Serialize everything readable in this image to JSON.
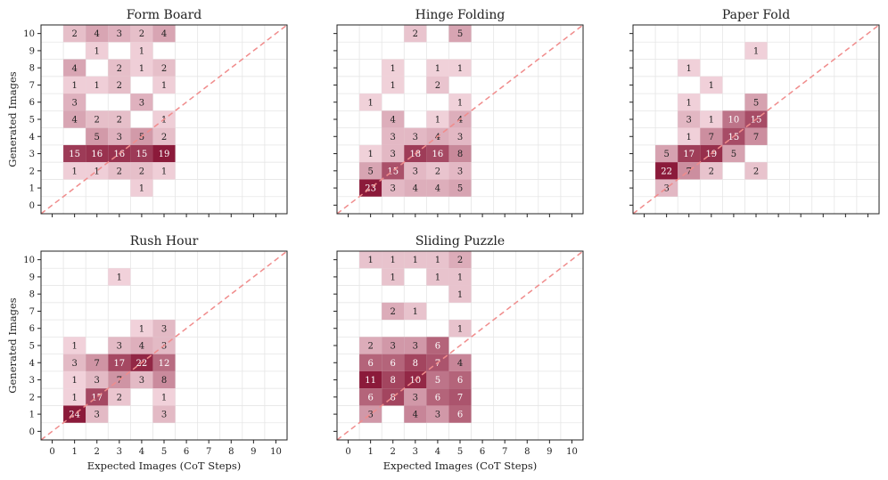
{
  "figure": {
    "xlabel": "Expected Images (CoT Steps)",
    "ylabel": "Generated Images"
  },
  "colors": {
    "diagonal": "#f08c8c",
    "cell_light": "#fbe4ea",
    "cell_dark": "#8b1a3a",
    "grid": "#e6e6e6",
    "axis": "#222222"
  },
  "chart_data": [
    {
      "type": "heatmap",
      "title": "Form Board",
      "xlabel": "",
      "ylabel": "Generated Images",
      "x_ticks": [
        "0",
        "1",
        "2",
        "3",
        "4",
        "5",
        "6",
        "7",
        "8",
        "9",
        "10"
      ],
      "y_ticks": [
        "0",
        "1",
        "2",
        "3",
        "4",
        "5",
        "6",
        "7",
        "8",
        "9",
        "10"
      ],
      "xlim": [
        -0.5,
        10.5
      ],
      "ylim": [
        -0.5,
        10.5
      ],
      "diagonal_reference": true,
      "cells": [
        {
          "x": 1,
          "y": 10,
          "v": 2
        },
        {
          "x": 2,
          "y": 10,
          "v": 4
        },
        {
          "x": 3,
          "y": 10,
          "v": 3
        },
        {
          "x": 4,
          "y": 10,
          "v": 2
        },
        {
          "x": 5,
          "y": 10,
          "v": 4
        },
        {
          "x": 2,
          "y": 9,
          "v": 1
        },
        {
          "x": 4,
          "y": 9,
          "v": 1
        },
        {
          "x": 1,
          "y": 8,
          "v": 4
        },
        {
          "x": 3,
          "y": 8,
          "v": 2
        },
        {
          "x": 4,
          "y": 8,
          "v": 1
        },
        {
          "x": 5,
          "y": 8,
          "v": 2
        },
        {
          "x": 1,
          "y": 7,
          "v": 1
        },
        {
          "x": 2,
          "y": 7,
          "v": 1
        },
        {
          "x": 3,
          "y": 7,
          "v": 2
        },
        {
          "x": 5,
          "y": 7,
          "v": 1
        },
        {
          "x": 1,
          "y": 6,
          "v": 3
        },
        {
          "x": 4,
          "y": 6,
          "v": 3
        },
        {
          "x": 1,
          "y": 5,
          "v": 4
        },
        {
          "x": 2,
          "y": 5,
          "v": 2
        },
        {
          "x": 3,
          "y": 5,
          "v": 2
        },
        {
          "x": 5,
          "y": 5,
          "v": 1
        },
        {
          "x": 2,
          "y": 4,
          "v": 5
        },
        {
          "x": 3,
          "y": 4,
          "v": 3
        },
        {
          "x": 4,
          "y": 4,
          "v": 5
        },
        {
          "x": 5,
          "y": 4,
          "v": 2
        },
        {
          "x": 1,
          "y": 3,
          "v": 15
        },
        {
          "x": 2,
          "y": 3,
          "v": 16
        },
        {
          "x": 3,
          "y": 3,
          "v": 16
        },
        {
          "x": 4,
          "y": 3,
          "v": 15
        },
        {
          "x": 5,
          "y": 3,
          "v": 19
        },
        {
          "x": 1,
          "y": 2,
          "v": 1
        },
        {
          "x": 2,
          "y": 2,
          "v": 1
        },
        {
          "x": 3,
          "y": 2,
          "v": 2
        },
        {
          "x": 4,
          "y": 2,
          "v": 2
        },
        {
          "x": 5,
          "y": 2,
          "v": 1
        },
        {
          "x": 4,
          "y": 1,
          "v": 1
        }
      ]
    },
    {
      "type": "heatmap",
      "title": "Hinge Folding",
      "xlabel": "",
      "ylabel": "",
      "x_ticks": [
        "0",
        "1",
        "2",
        "3",
        "4",
        "5",
        "6",
        "7",
        "8",
        "9",
        "10"
      ],
      "y_ticks": [],
      "xlim": [
        -0.5,
        10.5
      ],
      "ylim": [
        -0.5,
        10.5
      ],
      "diagonal_reference": true,
      "cells": [
        {
          "x": 3,
          "y": 10,
          "v": 2
        },
        {
          "x": 5,
          "y": 10,
          "v": 5
        },
        {
          "x": 2,
          "y": 8,
          "v": 1
        },
        {
          "x": 4,
          "y": 8,
          "v": 1
        },
        {
          "x": 5,
          "y": 8,
          "v": 1
        },
        {
          "x": 2,
          "y": 7,
          "v": 1
        },
        {
          "x": 4,
          "y": 7,
          "v": 2
        },
        {
          "x": 1,
          "y": 6,
          "v": 1
        },
        {
          "x": 5,
          "y": 6,
          "v": 1
        },
        {
          "x": 2,
          "y": 5,
          "v": 4
        },
        {
          "x": 4,
          "y": 5,
          "v": 1
        },
        {
          "x": 5,
          "y": 5,
          "v": 4
        },
        {
          "x": 2,
          "y": 4,
          "v": 3
        },
        {
          "x": 3,
          "y": 4,
          "v": 3
        },
        {
          "x": 4,
          "y": 4,
          "v": 4
        },
        {
          "x": 5,
          "y": 4,
          "v": 3
        },
        {
          "x": 1,
          "y": 3,
          "v": 1
        },
        {
          "x": 2,
          "y": 3,
          "v": 3
        },
        {
          "x": 3,
          "y": 3,
          "v": 18
        },
        {
          "x": 4,
          "y": 3,
          "v": 16
        },
        {
          "x": 5,
          "y": 3,
          "v": 8
        },
        {
          "x": 1,
          "y": 2,
          "v": 5
        },
        {
          "x": 2,
          "y": 2,
          "v": 15
        },
        {
          "x": 3,
          "y": 2,
          "v": 3
        },
        {
          "x": 4,
          "y": 2,
          "v": 2
        },
        {
          "x": 5,
          "y": 2,
          "v": 3
        },
        {
          "x": 1,
          "y": 1,
          "v": 23
        },
        {
          "x": 2,
          "y": 1,
          "v": 3
        },
        {
          "x": 3,
          "y": 1,
          "v": 4
        },
        {
          "x": 4,
          "y": 1,
          "v": 4
        },
        {
          "x": 5,
          "y": 1,
          "v": 5
        }
      ]
    },
    {
      "type": "heatmap",
      "title": "Paper Fold",
      "xlabel": "",
      "ylabel": "",
      "x_ticks": [
        "0",
        "1",
        "2",
        "3",
        "4",
        "5",
        "6",
        "7",
        "8",
        "9",
        "10"
      ],
      "y_ticks": [],
      "xlim": [
        -0.5,
        10.5
      ],
      "ylim": [
        -0.5,
        10.5
      ],
      "diagonal_reference": true,
      "cells": [
        {
          "x": 5,
          "y": 9,
          "v": 1
        },
        {
          "x": 2,
          "y": 8,
          "v": 1
        },
        {
          "x": 3,
          "y": 7,
          "v": 1
        },
        {
          "x": 2,
          "y": 6,
          "v": 1
        },
        {
          "x": 5,
          "y": 6,
          "v": 5
        },
        {
          "x": 2,
          "y": 5,
          "v": 3
        },
        {
          "x": 3,
          "y": 5,
          "v": 1
        },
        {
          "x": 4,
          "y": 5,
          "v": 10
        },
        {
          "x": 5,
          "y": 5,
          "v": 15
        },
        {
          "x": 2,
          "y": 4,
          "v": 1
        },
        {
          "x": 3,
          "y": 4,
          "v": 7
        },
        {
          "x": 4,
          "y": 4,
          "v": 15
        },
        {
          "x": 5,
          "y": 4,
          "v": 7
        },
        {
          "x": 1,
          "y": 3,
          "v": 5
        },
        {
          "x": 2,
          "y": 3,
          "v": 17
        },
        {
          "x": 3,
          "y": 3,
          "v": 19
        },
        {
          "x": 4,
          "y": 3,
          "v": 5
        },
        {
          "x": 1,
          "y": 2,
          "v": 22
        },
        {
          "x": 2,
          "y": 2,
          "v": 7
        },
        {
          "x": 3,
          "y": 2,
          "v": 2
        },
        {
          "x": 5,
          "y": 2,
          "v": 2
        },
        {
          "x": 1,
          "y": 1,
          "v": 3
        }
      ]
    },
    {
      "type": "heatmap",
      "title": "Rush Hour",
      "xlabel": "Expected Images (CoT Steps)",
      "ylabel": "Generated Images",
      "x_ticks": [
        "0",
        "1",
        "2",
        "3",
        "4",
        "5",
        "6",
        "7",
        "8",
        "9",
        "10"
      ],
      "y_ticks": [
        "0",
        "1",
        "2",
        "3",
        "4",
        "5",
        "6",
        "7",
        "8",
        "9",
        "10"
      ],
      "xlim": [
        -0.5,
        10.5
      ],
      "ylim": [
        -0.5,
        10.5
      ],
      "diagonal_reference": true,
      "cells": [
        {
          "x": 3,
          "y": 9,
          "v": 1
        },
        {
          "x": 4,
          "y": 6,
          "v": 1
        },
        {
          "x": 5,
          "y": 6,
          "v": 3
        },
        {
          "x": 1,
          "y": 5,
          "v": 1
        },
        {
          "x": 3,
          "y": 5,
          "v": 3
        },
        {
          "x": 4,
          "y": 5,
          "v": 4
        },
        {
          "x": 5,
          "y": 5,
          "v": 3
        },
        {
          "x": 1,
          "y": 4,
          "v": 3
        },
        {
          "x": 2,
          "y": 4,
          "v": 7
        },
        {
          "x": 3,
          "y": 4,
          "v": 17
        },
        {
          "x": 4,
          "y": 4,
          "v": 22
        },
        {
          "x": 5,
          "y": 4,
          "v": 12
        },
        {
          "x": 1,
          "y": 3,
          "v": 1
        },
        {
          "x": 2,
          "y": 3,
          "v": 3
        },
        {
          "x": 3,
          "y": 3,
          "v": 7
        },
        {
          "x": 4,
          "y": 3,
          "v": 3
        },
        {
          "x": 5,
          "y": 3,
          "v": 8
        },
        {
          "x": 1,
          "y": 2,
          "v": 1
        },
        {
          "x": 2,
          "y": 2,
          "v": 17
        },
        {
          "x": 3,
          "y": 2,
          "v": 2
        },
        {
          "x": 5,
          "y": 2,
          "v": 1
        },
        {
          "x": 1,
          "y": 1,
          "v": 24
        },
        {
          "x": 2,
          "y": 1,
          "v": 3
        },
        {
          "x": 5,
          "y": 1,
          "v": 3
        }
      ]
    },
    {
      "type": "heatmap",
      "title": "Sliding Puzzle",
      "xlabel": "Expected Images (CoT Steps)",
      "ylabel": "",
      "x_ticks": [
        "0",
        "1",
        "2",
        "3",
        "4",
        "5",
        "6",
        "7",
        "8",
        "9",
        "10"
      ],
      "y_ticks": [],
      "xlim": [
        -0.5,
        10.5
      ],
      "ylim": [
        -0.5,
        10.5
      ],
      "diagonal_reference": true,
      "cells": [
        {
          "x": 1,
          "y": 10,
          "v": 1
        },
        {
          "x": 2,
          "y": 10,
          "v": 1
        },
        {
          "x": 3,
          "y": 10,
          "v": 1
        },
        {
          "x": 4,
          "y": 10,
          "v": 1
        },
        {
          "x": 5,
          "y": 10,
          "v": 2
        },
        {
          "x": 2,
          "y": 9,
          "v": 1
        },
        {
          "x": 4,
          "y": 9,
          "v": 1
        },
        {
          "x": 5,
          "y": 9,
          "v": 1
        },
        {
          "x": 5,
          "y": 8,
          "v": 1
        },
        {
          "x": 2,
          "y": 7,
          "v": 2
        },
        {
          "x": 3,
          "y": 7,
          "v": 1
        },
        {
          "x": 5,
          "y": 6,
          "v": 1
        },
        {
          "x": 1,
          "y": 5,
          "v": 2
        },
        {
          "x": 2,
          "y": 5,
          "v": 3
        },
        {
          "x": 3,
          "y": 5,
          "v": 3
        },
        {
          "x": 4,
          "y": 5,
          "v": 6
        },
        {
          "x": 1,
          "y": 4,
          "v": 6
        },
        {
          "x": 2,
          "y": 4,
          "v": 6
        },
        {
          "x": 3,
          "y": 4,
          "v": 8
        },
        {
          "x": 4,
          "y": 4,
          "v": 7
        },
        {
          "x": 5,
          "y": 4,
          "v": 4
        },
        {
          "x": 1,
          "y": 3,
          "v": 11
        },
        {
          "x": 2,
          "y": 3,
          "v": 8
        },
        {
          "x": 3,
          "y": 3,
          "v": 10
        },
        {
          "x": 4,
          "y": 3,
          "v": 5
        },
        {
          "x": 5,
          "y": 3,
          "v": 6
        },
        {
          "x": 1,
          "y": 2,
          "v": 6
        },
        {
          "x": 2,
          "y": 2,
          "v": 8
        },
        {
          "x": 3,
          "y": 2,
          "v": 3
        },
        {
          "x": 4,
          "y": 2,
          "v": 6
        },
        {
          "x": 5,
          "y": 2,
          "v": 7
        },
        {
          "x": 1,
          "y": 1,
          "v": 3
        },
        {
          "x": 3,
          "y": 1,
          "v": 4
        },
        {
          "x": 4,
          "y": 1,
          "v": 3
        },
        {
          "x": 5,
          "y": 1,
          "v": 6
        }
      ]
    }
  ]
}
